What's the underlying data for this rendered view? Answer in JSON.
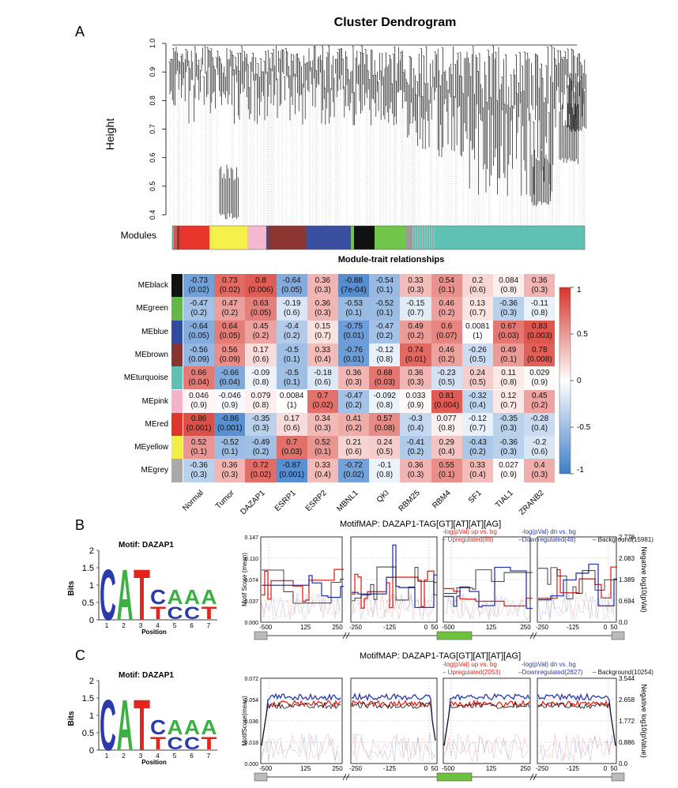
{
  "figure": {
    "panelA": "A",
    "panelB": "B",
    "panelC": "C"
  },
  "dendrogram": {
    "title": "Cluster Dendrogram",
    "ylabel": "Height",
    "yticks": [
      "1.0",
      "0.9",
      "0.8",
      "0.7",
      "0.6",
      "0.5",
      "0.4"
    ],
    "modules_label": "Modules",
    "module_colors": [
      "#d9534f",
      "#e8352c",
      "#f5f04a",
      "#f6b8cf",
      "#8b3530",
      "#3a4fa0",
      "#70c64a",
      "#111111",
      "#5fc1b4",
      "#9a9a9a"
    ]
  },
  "chart_data": {
    "type": "heatmap",
    "title": "Module-trait relationships",
    "rows": [
      "MEblack",
      "MEgreen",
      "MEblue",
      "MEbrown",
      "MEturquoise",
      "MEpink",
      "MEred",
      "MEyellow",
      "MEgrey"
    ],
    "row_colors": [
      "#111111",
      "#63b846",
      "#2f4a9e",
      "#8a3430",
      "#5fc1b4",
      "#f5b3c9",
      "#e0362c",
      "#f2ee47",
      "#aaaaaa"
    ],
    "columns": [
      "Normal",
      "Tumor",
      "DAZAP1",
      "ESRP1",
      "ESRP2",
      "MBNL1",
      "QKI",
      "RBM25",
      "RBM4",
      "SF1",
      "TIAL1",
      "ZRANB2"
    ],
    "values": [
      [
        -0.73,
        0.73,
        0.8,
        -0.64,
        0.36,
        -0.88,
        -0.54,
        0.33,
        0.54,
        0.2,
        0.084,
        0.36
      ],
      [
        -0.47,
        0.47,
        0.63,
        -0.19,
        0.36,
        -0.53,
        -0.52,
        -0.15,
        0.46,
        0.13,
        -0.36,
        -0.11
      ],
      [
        -0.64,
        0.64,
        0.45,
        -0.4,
        0.15,
        -0.75,
        -0.47,
        0.49,
        0.6,
        0.0081,
        0.67,
        0.83
      ],
      [
        -0.56,
        0.56,
        0.17,
        -0.5,
        0.33,
        -0.76,
        -0.12,
        0.74,
        0.46,
        -0.26,
        0.49,
        0.78
      ],
      [
        0.66,
        -0.66,
        -0.09,
        -0.5,
        -0.18,
        0.36,
        0.68,
        0.36,
        -0.23,
        0.24,
        0.11,
        0.029
      ],
      [
        0.046,
        -0.046,
        0.079,
        0.0084,
        0.7,
        -0.47,
        -0.092,
        0.033,
        0.81,
        -0.32,
        0.12,
        0.45
      ],
      [
        0.86,
        -0.86,
        -0.35,
        0.17,
        0.34,
        0.41,
        0.57,
        -0.3,
        0.077,
        -0.12,
        -0.35,
        -0.28
      ],
      [
        0.52,
        -0.52,
        -0.49,
        0.7,
        0.52,
        0.21,
        0.24,
        -0.41,
        0.29,
        -0.43,
        -0.36,
        -0.2
      ],
      [
        -0.36,
        0.36,
        0.72,
        -0.87,
        0.33,
        -0.72,
        -0.1,
        0.36,
        0.55,
        0.33,
        0.027,
        0.4
      ]
    ],
    "labels": [
      [
        "-0.73",
        "0.73",
        "0.8",
        "-0.64",
        "0.36",
        "-0.88",
        "-0.54",
        "0.33",
        "0.54",
        "0.2",
        "0.084",
        "0.36"
      ],
      [
        "-0.47",
        "0.47",
        "0.63",
        "-0.19",
        "0.36",
        "-0.53",
        "-0.52",
        "-0.15",
        "0.46",
        "0.13",
        "-0.36",
        "-0.11"
      ],
      [
        "-0.64",
        "0.64",
        "0.45",
        "-0.4",
        "0.15",
        "-0.75",
        "-0.47",
        "0.49",
        "0.6",
        "0.0081",
        "0.67",
        "0.83"
      ],
      [
        "-0.56",
        "0.56",
        "0.17",
        "-0.5",
        "0.33",
        "-0.76",
        "-0.12",
        "0.74",
        "0.46",
        "-0.26",
        "0.49",
        "0.78"
      ],
      [
        "0.66",
        "-0.66",
        "-0.09",
        "-0.5",
        "-0.18",
        "0.36",
        "0.68",
        "0.36",
        "-0.23",
        "0.24",
        "0.11",
        "0.029"
      ],
      [
        "0.046",
        "-0.046",
        "0.079",
        "0.0084",
        "0.7",
        "-0.47",
        "-0.092",
        "0.033",
        "0.81",
        "-0.32",
        "0.12",
        "0.45"
      ],
      [
        "0.86",
        "-0.86",
        "-0.35",
        "0.17",
        "0.34",
        "0.41",
        "0.57",
        "-0.3",
        "0.077",
        "-0.12",
        "-0.35",
        "-0.28"
      ],
      [
        "0.52",
        "-0.52",
        "-0.49",
        "0.7",
        "0.52",
        "0.21",
        "0.24",
        "-0.41",
        "0.29",
        "-0.43",
        "-0.36",
        "-0.2"
      ],
      [
        "-0.36",
        "0.36",
        "0.72",
        "-0.87",
        "0.33",
        "-0.72",
        "-0.1",
        "0.36",
        "0.55",
        "0.33",
        "0.027",
        "0.4"
      ]
    ],
    "pvalues": [
      [
        "(0.02)",
        "(0.02)",
        "(0.006)",
        "(0.05)",
        "(0.3)",
        "(7e-04)",
        "(0.1)",
        "(0.3)",
        "(0.1)",
        "(0.6)",
        "(0.8)",
        "(0.3)"
      ],
      [
        "(0.2)",
        "(0.2)",
        "(0.05)",
        "(0.6)",
        "(0.3)",
        "(0.1)",
        "(0.1)",
        "(0.7)",
        "(0.2)",
        "(0.7)",
        "(0.3)",
        "(0.8)"
      ],
      [
        "(0.05)",
        "(0.05)",
        "(0.2)",
        "(0.2)",
        "(0.7)",
        "(0.01)",
        "(0.2)",
        "(0.2)",
        "(0.07)",
        "(1)",
        "(0.03)",
        "(0.003)"
      ],
      [
        "(0.09)",
        "(0.09)",
        "(0.6)",
        "(0.1)",
        "(0.4)",
        "(0.01)",
        "(0.8)",
        "(0.01)",
        "(0.2)",
        "(0.5)",
        "(0.1)",
        "(0.008)"
      ],
      [
        "(0.04)",
        "(0.04)",
        "(0.8)",
        "(0.1)",
        "(0.6)",
        "(0.3)",
        "(0.03)",
        "(0.3)",
        "(0.5)",
        "(0.5)",
        "(0.8)",
        "(0.9)"
      ],
      [
        "(0.9)",
        "(0.9)",
        "(0.8)",
        "(1)",
        "(0.02)",
        "(0.2)",
        "(0.8)",
        "(0.9)",
        "(0.004)",
        "(0.4)",
        "(0.7)",
        "(0.2)"
      ],
      [
        "(0.001)",
        "(0.001)",
        "(0.3)",
        "(0.6)",
        "(0.3)",
        "(0.2)",
        "(0.08)",
        "(0.4)",
        "(0.8)",
        "(0.7)",
        "(0.3)",
        "(0.4)"
      ],
      [
        "(0.1)",
        "(0.1)",
        "(0.2)",
        "(0.03)",
        "(0.1)",
        "(0.6)",
        "(0.5)",
        "(0.2)",
        "(0.4)",
        "(0.2)",
        "(0.3)",
        "(0.6)"
      ],
      [
        "(0.3)",
        "(0.3)",
        "(0.02)",
        "(0.001)",
        "(0.4)",
        "(0.02)",
        "(0.8)",
        "(0.3)",
        "(0.1)",
        "(0.4)",
        "(0.9)",
        "(0.3)"
      ]
    ],
    "colorbar_ticks": [
      "1",
      "0.5",
      "0",
      "-0.5",
      "-1"
    ],
    "range": [
      -1,
      1
    ]
  },
  "logoB": {
    "title": "Motif: DAZAP1",
    "ylabel": "Bits",
    "xlabel": "Position",
    "yticks": [
      "2",
      "1.5",
      "1",
      "0.5",
      "0"
    ],
    "xticks": [
      "1",
      "2",
      "3",
      "4",
      "5",
      "6",
      "7"
    ],
    "letters_top": "CAT",
    "letters_mid": "CAAA",
    "letters_bot": "TCCT"
  },
  "logoC": {
    "title": "Motif: DAZAP1",
    "ylabel": "Bits",
    "xlabel": "Position",
    "yticks": [
      "2",
      "1.5",
      "1",
      "0.5",
      "0"
    ],
    "xticks": [
      "1",
      "2",
      "3",
      "4",
      "5",
      "6",
      "7"
    ],
    "letters_top": "CAT",
    "letters_mid": "CAAA",
    "letters_bot": "TCCT"
  },
  "mapB": {
    "title": "MotifMAP: DAZAP1-TAG[GT][AT][AT][AG]",
    "leg1": "-log(pVal) up vs. bg",
    "leg2": "-log(pVal) dn vs. bg",
    "leg3": "Upregulated(89)",
    "leg4": "Downregulated(48)",
    "leg5": "Background(15981)",
    "ylabel": "Motif Score (mean)",
    "ylabel2": "Negative log10(pVal)",
    "yticks": [
      "0.147",
      "0.110",
      "0.074",
      "0.037",
      "0.000"
    ],
    "yticks2": [
      "2.778",
      "2.083",
      "1.389",
      "0.694",
      "0.0"
    ],
    "xticks": [
      [
        "-50",
        "0",
        "125",
        "250"
      ],
      [
        "-250",
        "-125",
        "0",
        "50"
      ],
      [
        "-50",
        "0",
        "125",
        "250"
      ],
      [
        "-250",
        "-125",
        "0",
        "50"
      ]
    ]
  },
  "mapC": {
    "title": "MotifMAP: DAZAP1-TAG[GT][AT][AT][AG]",
    "leg1": "-log(pVal) up vs. bg",
    "leg2": "-log(pVal) dn vs. bg",
    "leg3": "Upregulated(2053)",
    "leg4": "Downregulated(2827)",
    "leg5": "Background(10254)",
    "ylabel": "MotifScore(mean)",
    "ylabel2": "Negative log10(pValue)",
    "yticks": [
      "0.072",
      "0.054",
      "0.036",
      "0.018",
      "0.000"
    ],
    "yticks2": [
      "3.544",
      "2.658",
      "1.772",
      "0.886",
      "0.0"
    ],
    "xticks": [
      [
        "-50",
        "0",
        "125",
        "250"
      ],
      [
        "-250",
        "-125",
        "0",
        "50"
      ],
      [
        "-50",
        "0",
        "125",
        "250"
      ],
      [
        "-250",
        "-125",
        "0",
        "50"
      ]
    ]
  },
  "colors": {
    "up": "#e0261f",
    "down": "#2a3aa8",
    "bg": "#111111",
    "exon_gray": "#bbbbbb",
    "exon_green": "#6cc23c"
  }
}
